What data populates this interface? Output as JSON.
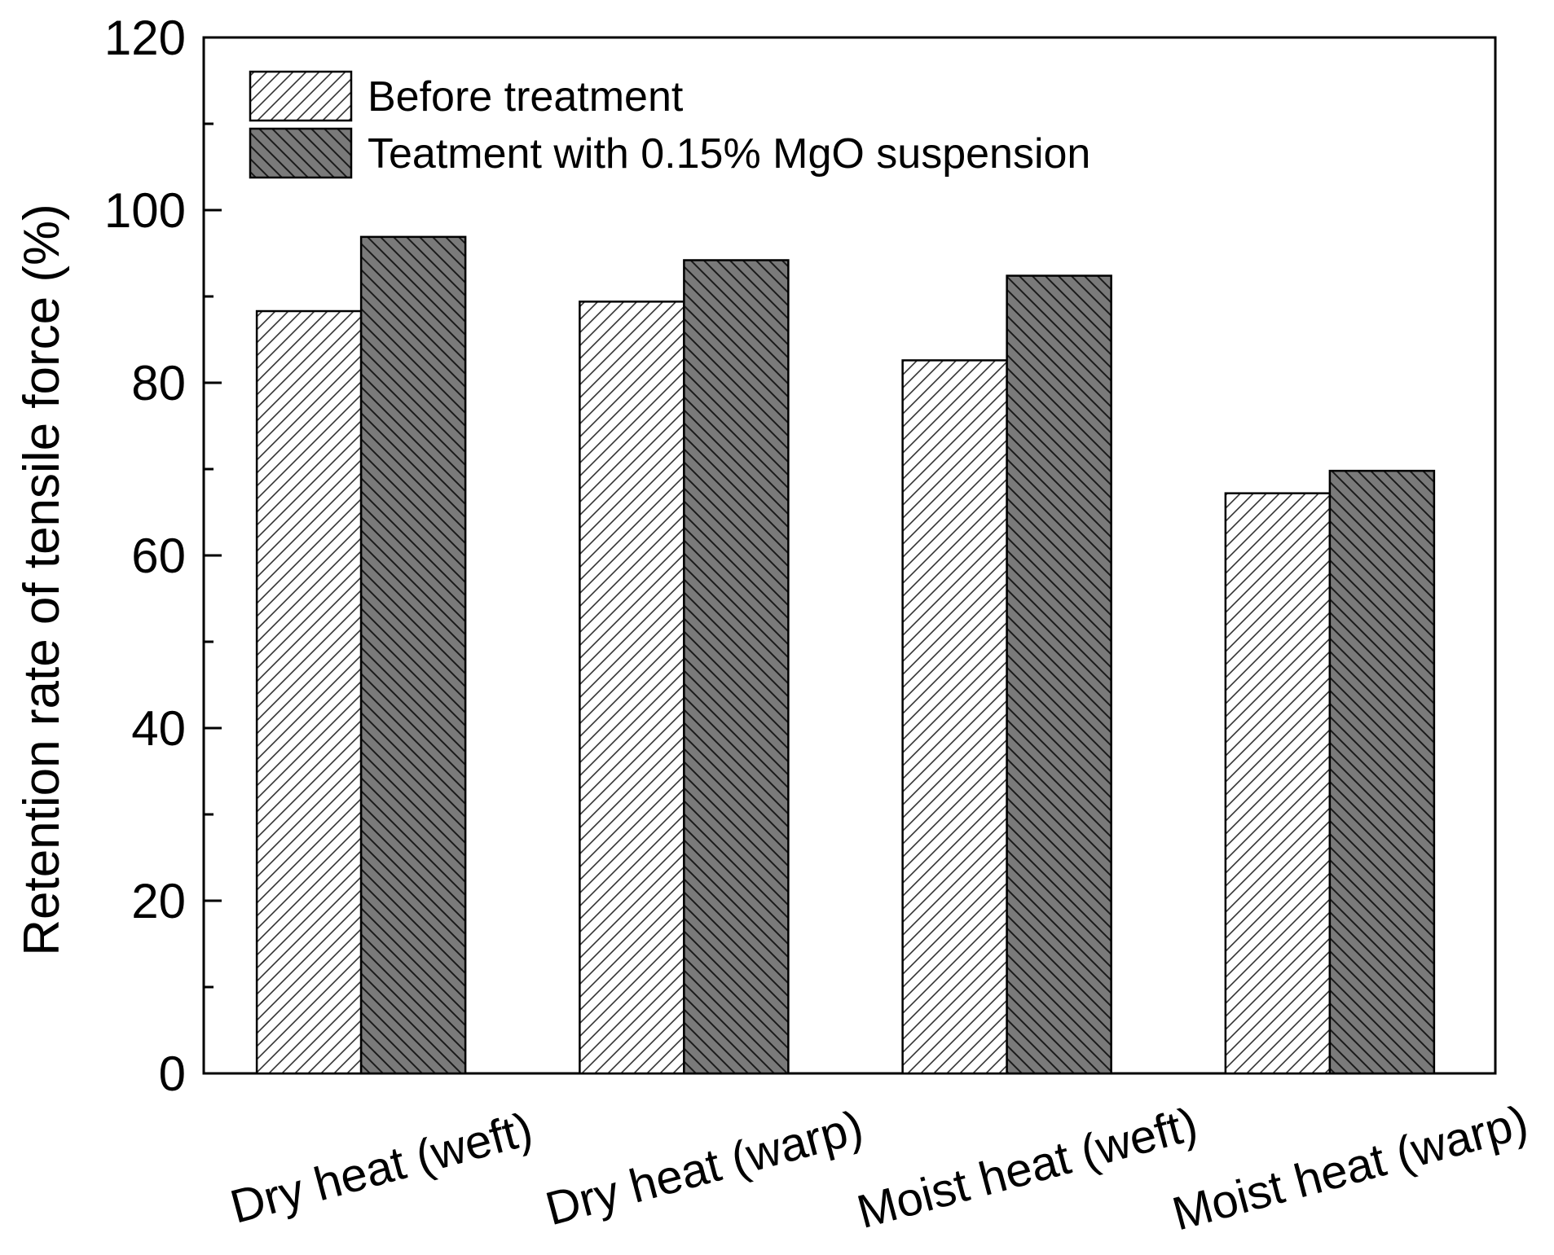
{
  "chart_data": {
    "type": "bar",
    "categories": [
      "Dry heat (weft)",
      "Dry heat (warp)",
      "Moist heat (weft)",
      "Moist heat (warp)"
    ],
    "series": [
      {
        "name": "Before treatment",
        "values": [
          88.3,
          89.4,
          82.6,
          67.2
        ],
        "color": "#ffffff",
        "hatch": "forward-diagonal"
      },
      {
        "name": "Teatment with 0.15% MgO suspension",
        "values": [
          96.9,
          94.2,
          92.4,
          69.8
        ],
        "color": "#7a7a7a",
        "hatch": "backward-diagonal"
      }
    ],
    "title": "",
    "xlabel": "",
    "ylabel": "Retention rate of tensile force (%)",
    "ylim": [
      0,
      120
    ],
    "yticks": [
      0,
      20,
      40,
      60,
      80,
      100,
      120
    ],
    "legend_position": "top-left",
    "grid": false
  }
}
